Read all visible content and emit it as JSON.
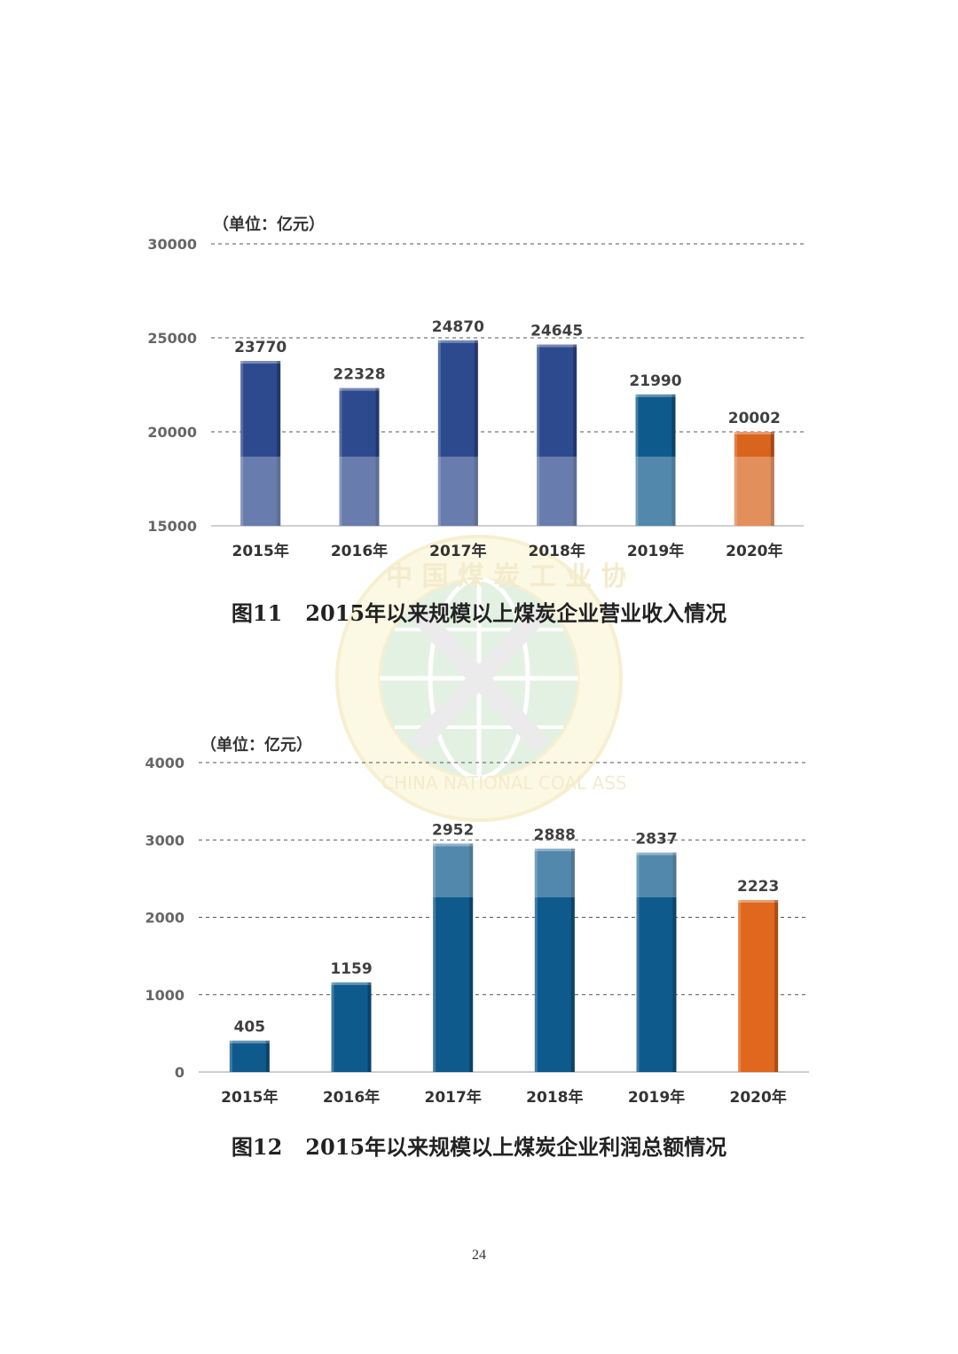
{
  "chart_data": [
    {
      "type": "bar",
      "unit_label": "（单位：亿元）",
      "categories": [
        "2015年",
        "2016年",
        "2017年",
        "2018年",
        "2019年",
        "2020年"
      ],
      "values": [
        23770,
        22328,
        24870,
        24645,
        21990,
        20002
      ],
      "ylim": [
        15000,
        30000
      ],
      "yticks": [
        15000,
        20000,
        25000,
        30000
      ],
      "grid": true,
      "bar_colors": [
        "#2E4A8E",
        "#2E4A8E",
        "#2E4A8E",
        "#2E4A8E",
        "#0F5A8C",
        "#D9641E"
      ],
      "caption_num": "图11",
      "caption_text": "2015年以来规模以上煤炭企业营业收入情况"
    },
    {
      "type": "bar",
      "unit_label": "（单位：亿元）",
      "categories": [
        "2015年",
        "2016年",
        "2017年",
        "2018年",
        "2019年",
        "2020年"
      ],
      "values": [
        405,
        1159,
        2952,
        2888,
        2837,
        2223
      ],
      "ylim": [
        0,
        4000
      ],
      "yticks": [
        0,
        1000,
        2000,
        3000,
        4000
      ],
      "grid": true,
      "bar_colors": [
        "#0F5A8C",
        "#0F5A8C",
        "#0F5A8C",
        "#0F5A8C",
        "#0F5A8C",
        "#E0671E"
      ],
      "caption_num": "图12",
      "caption_text": "2015年以来规模以上煤炭企业利润总额情况"
    }
  ],
  "watermark": {
    "text": "中国煤炭工业协会 CHINA NATIONAL COAL ASSOCIATION"
  },
  "page_number": "24"
}
